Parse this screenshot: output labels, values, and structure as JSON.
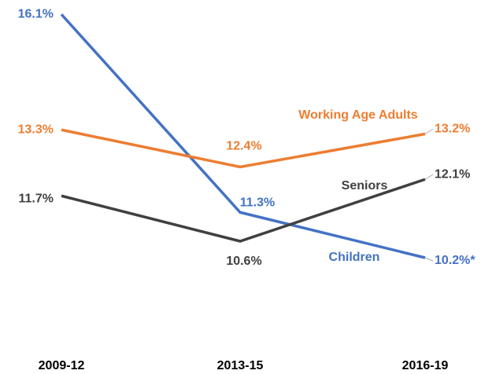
{
  "chart_data": {
    "type": "line",
    "categories": [
      "2009-12",
      "2013-15",
      "2016-19"
    ],
    "ylim": [
      8,
      16.2
    ],
    "series": [
      {
        "name": "Children",
        "color": "#4472c4",
        "values": [
          16.1,
          11.3,
          10.2
        ],
        "value_labels": [
          "16.1%",
          "11.3%",
          "10.2%*"
        ]
      },
      {
        "name": "Working Age Adults",
        "color": "#ed7d31",
        "values": [
          13.3,
          12.4,
          13.2
        ],
        "value_labels": [
          "13.3%",
          "12.4%",
          "13.2%"
        ]
      },
      {
        "name": "Seniors",
        "color": "#404040",
        "values": [
          11.7,
          10.6,
          12.1
        ],
        "value_labels": [
          "11.7%",
          "10.6%",
          "12.1%"
        ]
      }
    ]
  }
}
